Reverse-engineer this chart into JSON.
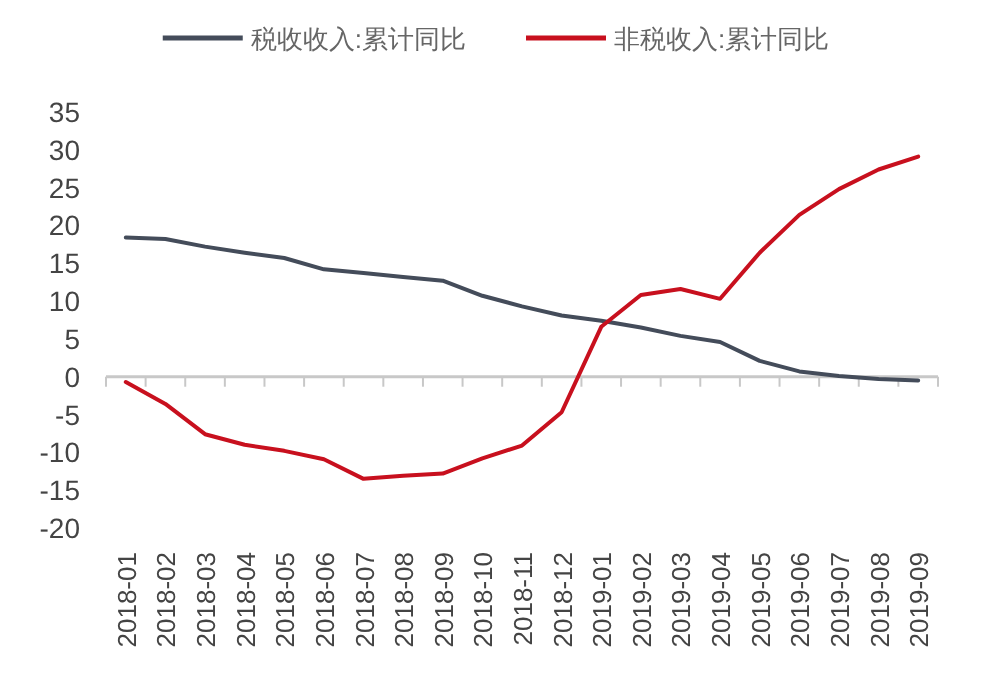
{
  "chart_data": {
    "type": "line",
    "categories": [
      "2018-01",
      "2018-02",
      "2018-03",
      "2018-04",
      "2018-05",
      "2018-06",
      "2018-07",
      "2018-08",
      "2018-09",
      "2018-10",
      "2018-11",
      "2018-12",
      "2019-01",
      "2019-02",
      "2019-03",
      "2019-04",
      "2019-05",
      "2019-06",
      "2019-07",
      "2019-08",
      "2019-09"
    ],
    "series": [
      {
        "name": "税收收入:累计同比",
        "color": "#444c5a",
        "values": [
          18.4,
          18.2,
          17.2,
          16.4,
          15.7,
          14.2,
          13.7,
          13.2,
          12.7,
          10.7,
          9.3,
          8.1,
          7.4,
          6.5,
          5.4,
          4.6,
          2.1,
          0.7,
          0.1,
          -0.3,
          -0.5
        ]
      },
      {
        "name": "非税收入:累计同比",
        "color": "#c8101e",
        "values": [
          -0.7,
          -3.6,
          -7.6,
          -9.0,
          -9.8,
          -10.9,
          -13.5,
          -13.1,
          -12.8,
          -10.8,
          -9.1,
          -4.7,
          6.6,
          10.8,
          11.6,
          10.3,
          16.4,
          21.4,
          24.8,
          27.4,
          29.1
        ]
      }
    ],
    "ylim": [
      -20,
      35
    ],
    "yticks": [
      -20,
      -15,
      -10,
      -5,
      0,
      5,
      10,
      15,
      20,
      25,
      30,
      35
    ],
    "legend": "top",
    "marker": "none",
    "line_style": "solid"
  }
}
